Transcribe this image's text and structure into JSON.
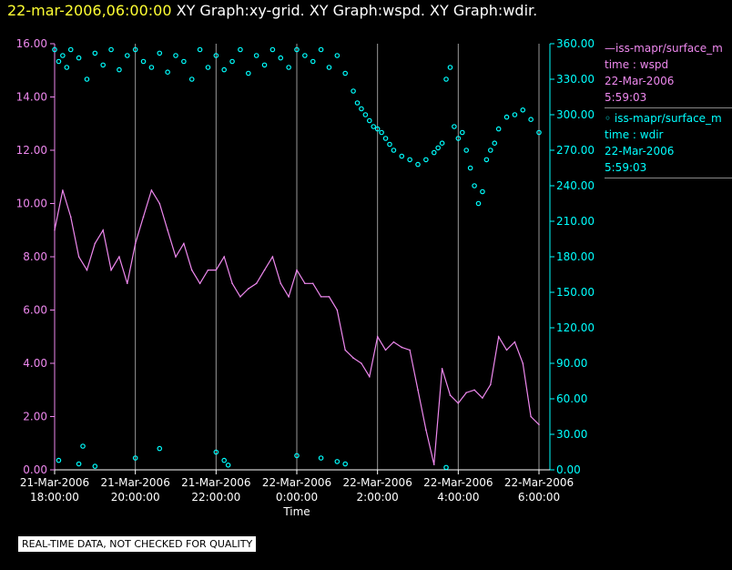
{
  "title": {
    "date": "22-mar-2006,06:00:00",
    "graphs": "XY Graph:xy-grid.  XY Graph:wspd.  XY Graph:wdir."
  },
  "legend": {
    "wspd": {
      "name": "—iss-mapr/surface_m",
      "param": "time : wspd",
      "date": "22-Mar-2006",
      "time": "5:59:03"
    },
    "wdir": {
      "name": "◦ iss-mapr/surface_m",
      "param": "time : wdir",
      "date": "22-Mar-2006",
      "time": "5:59:03"
    }
  },
  "footer": {
    "qc_note": "REAL-TIME DATA, NOT CHECKED FOR QUALITY"
  },
  "colors": {
    "wspd": "#ee88ee",
    "wdir": "#00ffff",
    "left_axis": "#ee88ee",
    "right_axis": "#00ffff",
    "grid": "#999999",
    "background": "#000000"
  },
  "chart_data": {
    "type": "line+scatter",
    "xlabel": "Time",
    "xlim": [
      0,
      6
    ],
    "x_ticks": [
      {
        "x": 0,
        "line1": "21-Mar-2006",
        "line2": "18:00:00"
      },
      {
        "x": 1,
        "line1": "21-Mar-2006",
        "line2": "20:00:00"
      },
      {
        "x": 2,
        "line1": "21-Mar-2006",
        "line2": "22:00:00"
      },
      {
        "x": 3,
        "line1": "22-Mar-2006",
        "line2": "0:00:00"
      },
      {
        "x": 4,
        "line1": "22-Mar-2006",
        "line2": "2:00:00"
      },
      {
        "x": 5,
        "line1": "22-Mar-2006",
        "line2": "4:00:00"
      },
      {
        "x": 6,
        "line1": "22-Mar-2006",
        "line2": "6:00:00"
      }
    ],
    "y_left": {
      "label": "wspd",
      "ylim": [
        0,
        16
      ],
      "ticks": [
        "0.00",
        "2.00",
        "4.00",
        "6.00",
        "8.00",
        "10.00",
        "12.00",
        "14.00",
        "16.00"
      ]
    },
    "y_right": {
      "label": "wdir",
      "ylim": [
        0,
        360
      ],
      "ticks": [
        "0.00",
        "30.00",
        "60.00",
        "90.00",
        "120.00",
        "150.00",
        "180.00",
        "210.00",
        "240.00",
        "270.00",
        "300.00",
        "330.00",
        "360.00"
      ]
    },
    "series": [
      {
        "name": "wspd",
        "style": "line",
        "axis": "left",
        "x": [
          0.0,
          0.1,
          0.2,
          0.3,
          0.4,
          0.5,
          0.6,
          0.7,
          0.8,
          0.9,
          1.0,
          1.1,
          1.2,
          1.3,
          1.4,
          1.5,
          1.6,
          1.7,
          1.8,
          1.9,
          2.0,
          2.1,
          2.2,
          2.3,
          2.4,
          2.5,
          2.6,
          2.7,
          2.8,
          2.9,
          3.0,
          3.1,
          3.2,
          3.3,
          3.4,
          3.5,
          3.6,
          3.7,
          3.8,
          3.9,
          4.0,
          4.1,
          4.2,
          4.3,
          4.4,
          4.5,
          4.6,
          4.7,
          4.8,
          4.9,
          5.0,
          5.1,
          5.2,
          5.3,
          5.4,
          5.5,
          5.6,
          5.7,
          5.8,
          5.9,
          6.0
        ],
        "values": [
          9.0,
          10.5,
          9.5,
          8.0,
          7.5,
          8.5,
          9.0,
          7.5,
          8.0,
          7.0,
          8.5,
          9.5,
          10.5,
          10.0,
          9.0,
          8.0,
          8.5,
          7.5,
          7.0,
          7.5,
          7.5,
          8.0,
          7.0,
          6.5,
          6.8,
          7.0,
          7.5,
          8.0,
          7.0,
          6.5,
          7.5,
          7.0,
          7.0,
          6.5,
          6.5,
          6.0,
          4.5,
          4.2,
          4.0,
          3.5,
          5.0,
          4.5,
          4.8,
          4.6,
          4.5,
          3.0,
          1.5,
          0.2,
          3.8,
          2.8,
          2.5,
          2.9,
          3.0,
          2.7,
          3.2,
          5.0,
          4.5,
          4.8,
          4.0,
          2.0,
          1.7
        ]
      },
      {
        "name": "wdir",
        "style": "scatter",
        "axis": "right",
        "x": [
          0.0,
          0.05,
          0.1,
          0.15,
          0.2,
          0.3,
          0.4,
          0.5,
          0.6,
          0.7,
          0.8,
          0.9,
          1.0,
          1.1,
          1.2,
          1.3,
          1.4,
          1.5,
          1.6,
          1.7,
          1.8,
          1.9,
          2.0,
          2.1,
          2.2,
          2.3,
          2.4,
          2.5,
          2.6,
          2.7,
          2.8,
          2.9,
          3.0,
          3.1,
          3.2,
          3.3,
          3.4,
          3.5,
          3.6,
          3.7,
          3.75,
          3.8,
          3.85,
          3.9,
          3.95,
          4.0,
          4.05,
          4.1,
          4.15,
          4.2,
          4.3,
          4.4,
          4.5,
          4.6,
          4.7,
          4.75,
          4.8,
          4.85,
          4.9,
          4.95,
          5.0,
          5.05,
          5.1,
          5.15,
          5.2,
          5.25,
          5.3,
          5.35,
          5.4,
          5.45,
          5.5,
          5.6,
          5.7,
          5.8,
          5.9,
          6.0,
          0.05,
          0.3,
          0.35,
          0.5,
          1.0,
          1.3,
          2.0,
          2.1,
          2.15,
          3.0,
          3.3,
          3.5,
          3.6,
          4.85
        ],
        "values": [
          355,
          345,
          350,
          340,
          355,
          348,
          330,
          352,
          342,
          355,
          338,
          350,
          355,
          345,
          340,
          352,
          336,
          350,
          345,
          330,
          355,
          340,
          350,
          338,
          345,
          355,
          335,
          350,
          342,
          355,
          348,
          340,
          355,
          350,
          345,
          355,
          340,
          350,
          335,
          320,
          310,
          305,
          300,
          295,
          290,
          288,
          285,
          280,
          275,
          270,
          265,
          262,
          258,
          262,
          268,
          272,
          276,
          330,
          340,
          290,
          280,
          285,
          270,
          255,
          240,
          225,
          235,
          262,
          270,
          276,
          288,
          298,
          300,
          304,
          296,
          285,
          8,
          5,
          20,
          3,
          10,
          18,
          15,
          8,
          4,
          12,
          10,
          7,
          5,
          2
        ]
      }
    ]
  }
}
